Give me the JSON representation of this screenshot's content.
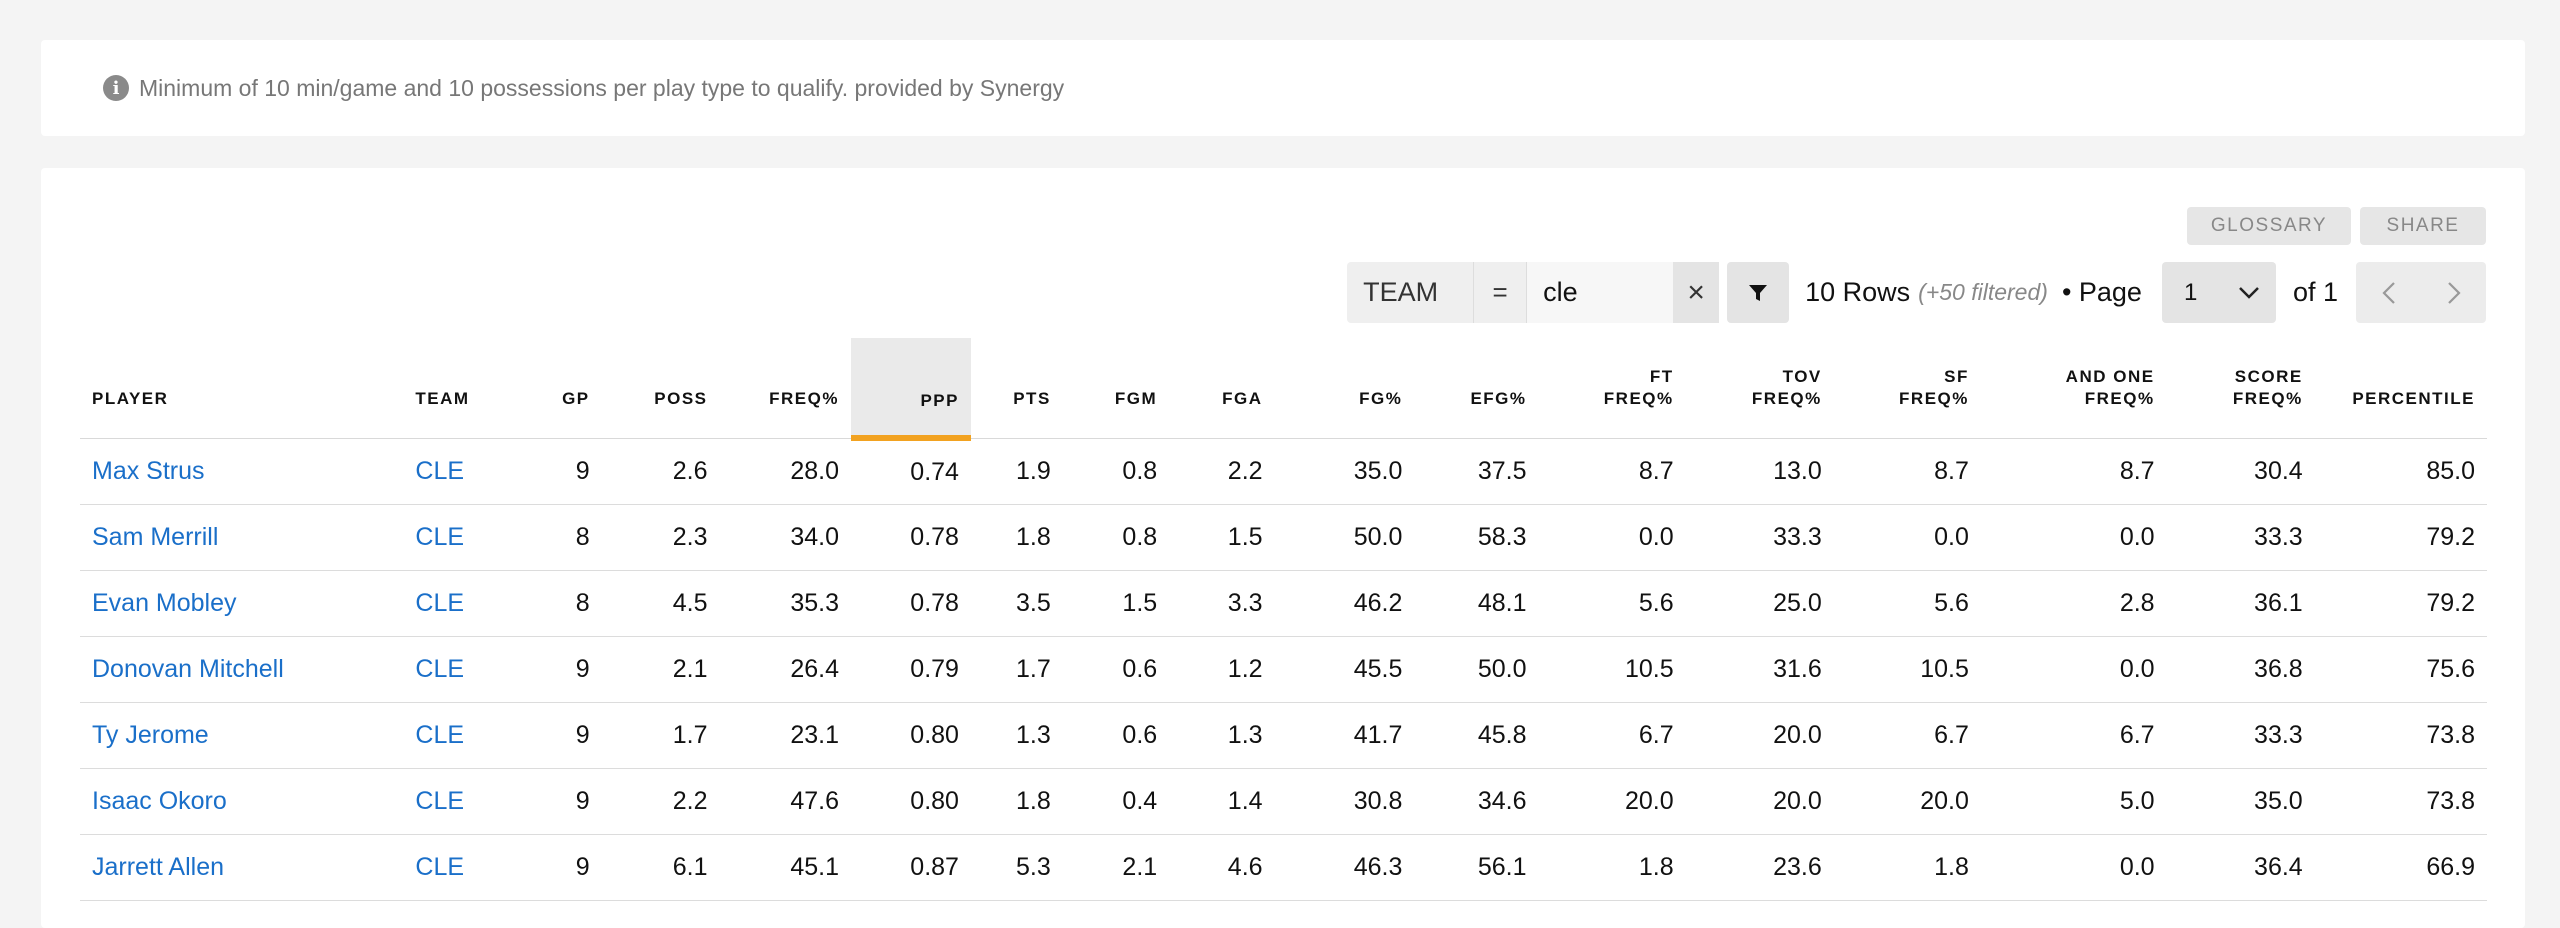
{
  "note": {
    "icon": "info-icon",
    "text": "Minimum of 10 min/game and 10 possessions per play type to qualify. provided by Synergy"
  },
  "buttons": {
    "glossary": "GLOSSARY",
    "share": "SHARE"
  },
  "filter": {
    "field": "TEAM",
    "operator": "=",
    "value": "cle",
    "clear": "×"
  },
  "pagination": {
    "rows": "10 Rows",
    "filtered": "(+50 filtered)",
    "page_label": "• Page",
    "current_page": "1",
    "of": "of 1"
  },
  "colors": {
    "link": "#1a6fc9",
    "sort_accent": "#f2a220"
  },
  "table": {
    "headers": [
      {
        "line1": "PLAYER",
        "line2": ""
      },
      {
        "line1": "TEAM",
        "line2": ""
      },
      {
        "line1": "GP",
        "line2": ""
      },
      {
        "line1": "POSS",
        "line2": ""
      },
      {
        "line1": "FREQ%",
        "line2": ""
      },
      {
        "line1": "PPP",
        "line2": ""
      },
      {
        "line1": "PTS",
        "line2": ""
      },
      {
        "line1": "FGM",
        "line2": ""
      },
      {
        "line1": "FGA",
        "line2": ""
      },
      {
        "line1": "FG%",
        "line2": ""
      },
      {
        "line1": "EFG%",
        "line2": ""
      },
      {
        "line1": "FT",
        "line2": "FREQ%"
      },
      {
        "line1": "TOV",
        "line2": "FREQ%"
      },
      {
        "line1": "SF",
        "line2": "FREQ%"
      },
      {
        "line1": "AND ONE",
        "line2": "FREQ%"
      },
      {
        "line1": "SCORE",
        "line2": "FREQ%"
      },
      {
        "line1": "PERCENTILE",
        "line2": ""
      }
    ],
    "rows": [
      [
        "Max Strus",
        "CLE",
        "9",
        "2.6",
        "28.0",
        "0.74",
        "1.9",
        "0.8",
        "2.2",
        "35.0",
        "37.5",
        "8.7",
        "13.0",
        "8.7",
        "8.7",
        "30.4",
        "85.0"
      ],
      [
        "Sam Merrill",
        "CLE",
        "8",
        "2.3",
        "34.0",
        "0.78",
        "1.8",
        "0.8",
        "1.5",
        "50.0",
        "58.3",
        "0.0",
        "33.3",
        "0.0",
        "0.0",
        "33.3",
        "79.2"
      ],
      [
        "Evan Mobley",
        "CLE",
        "8",
        "4.5",
        "35.3",
        "0.78",
        "3.5",
        "1.5",
        "3.3",
        "46.2",
        "48.1",
        "5.6",
        "25.0",
        "5.6",
        "2.8",
        "36.1",
        "79.2"
      ],
      [
        "Donovan Mitchell",
        "CLE",
        "9",
        "2.1",
        "26.4",
        "0.79",
        "1.7",
        "0.6",
        "1.2",
        "45.5",
        "50.0",
        "10.5",
        "31.6",
        "10.5",
        "0.0",
        "36.8",
        "75.6"
      ],
      [
        "Ty Jerome",
        "CLE",
        "9",
        "1.7",
        "23.1",
        "0.80",
        "1.3",
        "0.6",
        "1.3",
        "41.7",
        "45.8",
        "6.7",
        "20.0",
        "6.7",
        "6.7",
        "33.3",
        "73.8"
      ],
      [
        "Isaac Okoro",
        "CLE",
        "9",
        "2.2",
        "47.6",
        "0.80",
        "1.8",
        "0.4",
        "1.4",
        "30.8",
        "34.6",
        "20.0",
        "20.0",
        "20.0",
        "5.0",
        "35.0",
        "73.8"
      ],
      [
        "Jarrett Allen",
        "CLE",
        "9",
        "6.1",
        "45.1",
        "0.87",
        "5.3",
        "2.1",
        "4.6",
        "46.3",
        "56.1",
        "1.8",
        "23.6",
        "1.8",
        "0.0",
        "36.4",
        "66.9"
      ]
    ]
  }
}
